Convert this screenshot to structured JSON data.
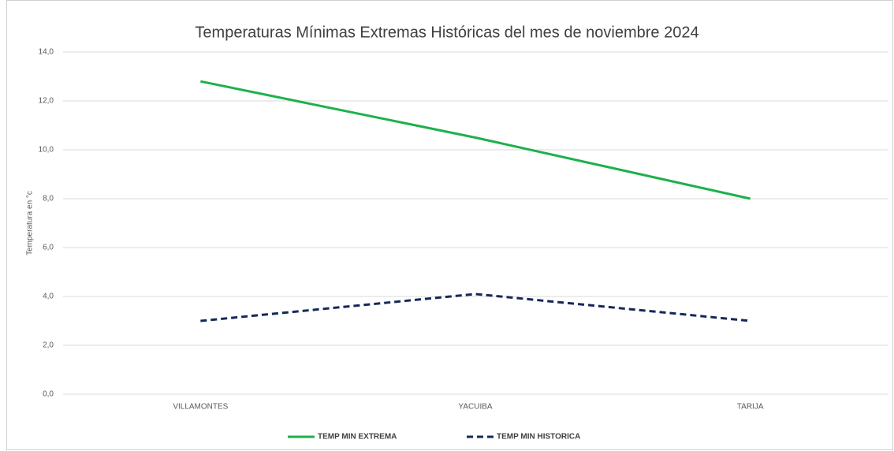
{
  "chart_data": {
    "type": "line",
    "title": "Temperaturas Mínimas Extremas Históricas del mes de noviembre 2024",
    "y_label": "Temperatura en °c",
    "categories": [
      "VILLAMONTES",
      "YACUIBA",
      "TARIJA"
    ],
    "series": [
      {
        "name": "TEMP MIN EXTREMA",
        "color": "#1db14b",
        "dashed": false,
        "values": [
          12.8,
          10.5,
          8.0
        ]
      },
      {
        "name": "TEMP MIN HISTORICA",
        "color": "#14285a",
        "dashed": true,
        "values": [
          3.0,
          4.1,
          3.0
        ]
      }
    ],
    "ylim": [
      0,
      14
    ],
    "yticks": [
      {
        "value": 0,
        "label": "0,0"
      },
      {
        "value": 2,
        "label": "2,0"
      },
      {
        "value": 4,
        "label": "4,0"
      },
      {
        "value": 6,
        "label": "6,0"
      },
      {
        "value": 8,
        "label": "8,0"
      },
      {
        "value": 10,
        "label": "10,0"
      },
      {
        "value": 12,
        "label": "12,0"
      },
      {
        "value": 14,
        "label": "14,0"
      }
    ],
    "grid": true,
    "legend": "bottom"
  }
}
